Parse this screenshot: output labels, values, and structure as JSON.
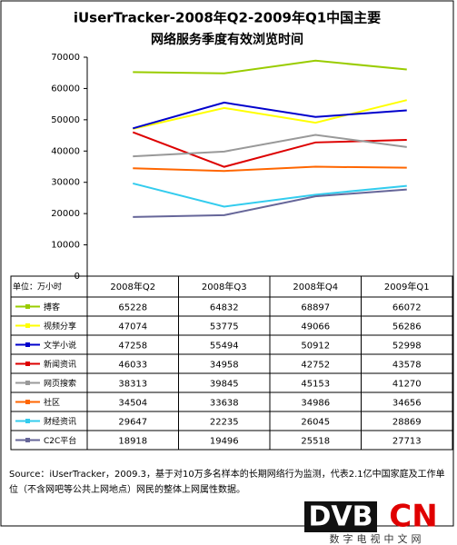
{
  "chart_data": {
    "type": "line",
    "title": [
      "iUserTracker-2008年Q2-2009年Q1中国主要",
      "网络服务季度有效浏览时间"
    ],
    "unit_label": "单位：万小时",
    "categories": [
      "2008年Q2",
      "2008年Q3",
      "2008年Q4",
      "2009年Q1"
    ],
    "ylim": [
      0,
      70000
    ],
    "yticks": [
      0,
      10000,
      20000,
      30000,
      40000,
      50000,
      60000,
      70000
    ],
    "series": [
      {
        "name": "搏客",
        "color": "#99cc00",
        "values": [
          65228,
          64832,
          68897,
          66072
        ]
      },
      {
        "name": "视频分享",
        "color": "#ffff00",
        "values": [
          47074,
          53775,
          49066,
          56286
        ]
      },
      {
        "name": "文学小说",
        "color": "#0000cc",
        "values": [
          47258,
          55494,
          50912,
          52998
        ]
      },
      {
        "name": "新闻资讯",
        "color": "#dd0000",
        "values": [
          46033,
          34958,
          42752,
          43578
        ]
      },
      {
        "name": "网页搜索",
        "color": "#999999",
        "values": [
          38313,
          39845,
          45153,
          41270
        ]
      },
      {
        "name": "社区",
        "color": "#ff6600",
        "values": [
          34504,
          33638,
          34986,
          34656
        ]
      },
      {
        "name": "财经资讯",
        "color": "#33ccee",
        "values": [
          29647,
          22235,
          26045,
          28869
        ]
      },
      {
        "name": "C2C平台",
        "color": "#666699",
        "values": [
          18918,
          19496,
          25518,
          27713
        ]
      }
    ]
  },
  "source": "Source：iUserTracker，2009.3，基于对10万多名样本的长期网络行为监测，代表2.1亿中国家庭及工作单位（不含网吧等公共上网地点）网民的整体上网属性数据。",
  "logo": {
    "left": "DVB",
    "right": "CN",
    "caption": "数字电视中文网"
  }
}
